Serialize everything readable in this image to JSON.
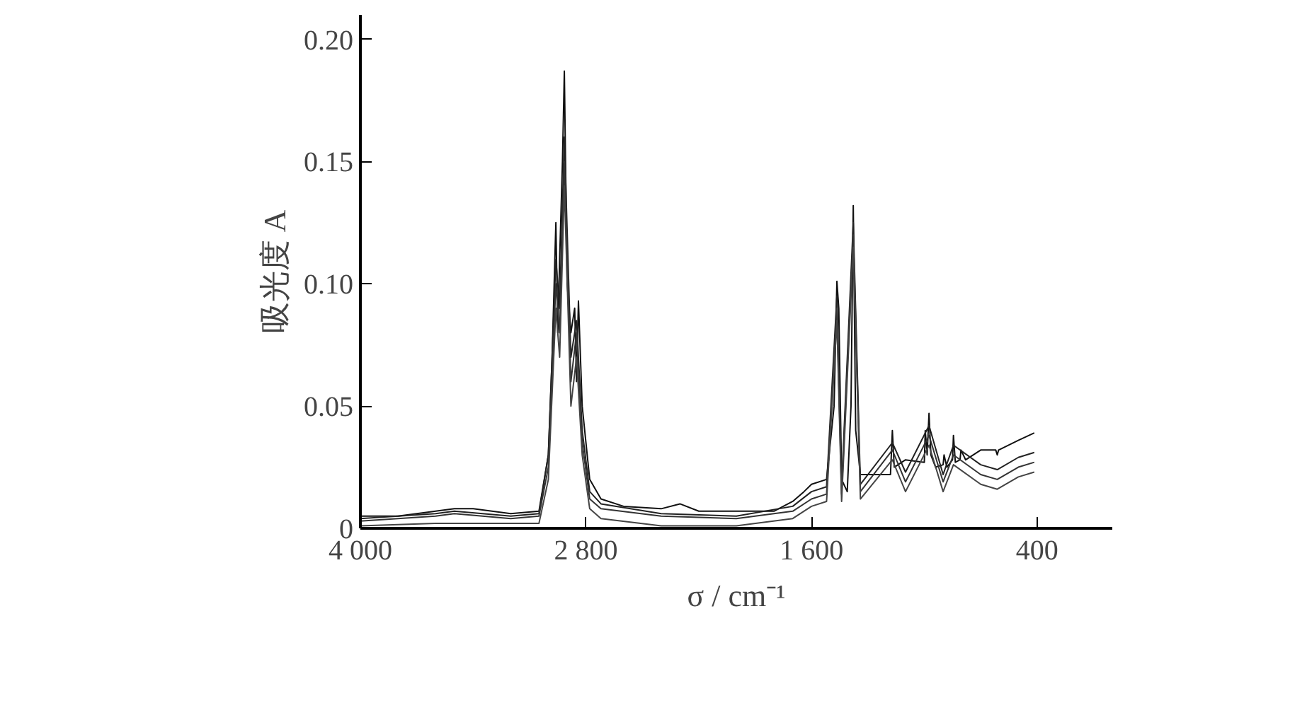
{
  "chart_data": {
    "type": "line",
    "xlabel": "σ / cm⁻¹",
    "ylabel": "吸光度 A",
    "xlim": [
      4000,
      0
    ],
    "ylim": [
      0,
      0.21
    ],
    "xticks": [
      {
        "value": 4000,
        "label": "4 000"
      },
      {
        "value": 2800,
        "label": "2 800"
      },
      {
        "value": 1600,
        "label": "1 600"
      },
      400
    ],
    "yticks": [
      0,
      0.05,
      {
        "value": 0.1,
        "label": "0.10"
      },
      0.15,
      {
        "value": 0.2,
        "label": "0.20"
      }
    ],
    "grid": false,
    "line_style": "solid",
    "marker": "none",
    "x": [
      4000,
      3800,
      3600,
      3500,
      3400,
      3200,
      3050,
      3000,
      2980,
      2960,
      2950,
      2940,
      2925,
      2915,
      2900,
      2880,
      2860,
      2850,
      2840,
      2820,
      2780,
      2720,
      2600,
      2400,
      2300,
      2200,
      2000,
      1800,
      1700,
      1640,
      1600,
      1520,
      1480,
      1465,
      1455,
      1440,
      1410,
      1390,
      1378,
      1365,
      1340,
      1250,
      1180,
      1170,
      1160,
      1100,
      1000,
      995,
      985,
      975,
      965,
      940,
      900,
      895,
      880,
      850,
      845,
      835,
      810,
      805,
      780,
      700,
      620,
      612,
      605,
      500,
      415
    ],
    "series": [
      {
        "color": "#111111",
        "values": [
          0.005,
          0.005,
          0.007,
          0.008,
          0.008,
          0.006,
          0.007,
          0.03,
          0.07,
          0.125,
          0.08,
          0.11,
          0.15,
          0.187,
          0.1,
          0.08,
          0.09,
          0.06,
          0.093,
          0.05,
          0.02,
          0.012,
          0.009,
          0.008,
          0.01,
          0.007,
          0.007,
          0.007,
          0.011,
          0.015,
          0.018,
          0.02,
          0.05,
          0.101,
          0.09,
          0.02,
          0.015,
          0.05,
          0.132,
          0.04,
          0.022,
          0.022,
          0.022,
          0.04,
          0.025,
          0.028,
          0.027,
          0.04,
          0.03,
          0.047,
          0.03,
          0.025,
          0.026,
          0.03,
          0.025,
          0.028,
          0.038,
          0.027,
          0.028,
          0.032,
          0.028,
          0.032,
          0.032,
          0.03,
          0.032,
          0.036,
          0.039
        ]
      },
      {
        "color": "#222222",
        "x": [
          4000,
          3600,
          3500,
          3200,
          3050,
          3000,
          2960,
          2940,
          2915,
          2880,
          2850,
          2820,
          2780,
          2720,
          2400,
          2000,
          1700,
          1600,
          1520,
          1465,
          1440,
          1378,
          1340,
          1170,
          1100,
          975,
          900,
          845,
          700,
          612,
          500,
          415
        ],
        "values": [
          0.004,
          0.006,
          0.007,
          0.005,
          0.006,
          0.03,
          0.11,
          0.09,
          0.16,
          0.07,
          0.085,
          0.04,
          0.015,
          0.01,
          0.006,
          0.005,
          0.009,
          0.015,
          0.017,
          0.095,
          0.017,
          0.125,
          0.018,
          0.035,
          0.023,
          0.042,
          0.022,
          0.034,
          0.026,
          0.024,
          0.029,
          0.031
        ]
      },
      {
        "color": "#333333",
        "x": [
          4000,
          3600,
          3500,
          3200,
          3050,
          3000,
          2960,
          2940,
          2915,
          2880,
          2850,
          2820,
          2780,
          2720,
          2400,
          2000,
          1700,
          1600,
          1520,
          1465,
          1440,
          1378,
          1340,
          1170,
          1100,
          975,
          900,
          845,
          700,
          612,
          500,
          415
        ],
        "values": [
          0.003,
          0.005,
          0.006,
          0.004,
          0.005,
          0.025,
          0.1,
          0.08,
          0.15,
          0.06,
          0.08,
          0.035,
          0.012,
          0.008,
          0.005,
          0.004,
          0.007,
          0.012,
          0.014,
          0.09,
          0.014,
          0.12,
          0.015,
          0.032,
          0.019,
          0.038,
          0.019,
          0.03,
          0.022,
          0.02,
          0.025,
          0.027
        ]
      },
      {
        "color": "#444444",
        "x": [
          4000,
          3600,
          3500,
          3200,
          3050,
          3000,
          2960,
          2940,
          2915,
          2880,
          2850,
          2820,
          2780,
          2720,
          2400,
          2000,
          1700,
          1600,
          1520,
          1465,
          1440,
          1378,
          1340,
          1170,
          1100,
          975,
          900,
          845,
          700,
          612,
          500,
          415
        ],
        "values": [
          0.001,
          0.002,
          0.002,
          0.002,
          0.002,
          0.02,
          0.09,
          0.07,
          0.14,
          0.05,
          0.07,
          0.03,
          0.008,
          0.004,
          0.001,
          0.001,
          0.004,
          0.009,
          0.011,
          0.085,
          0.011,
          0.115,
          0.012,
          0.028,
          0.015,
          0.034,
          0.015,
          0.026,
          0.018,
          0.016,
          0.021,
          0.023
        ]
      }
    ]
  }
}
